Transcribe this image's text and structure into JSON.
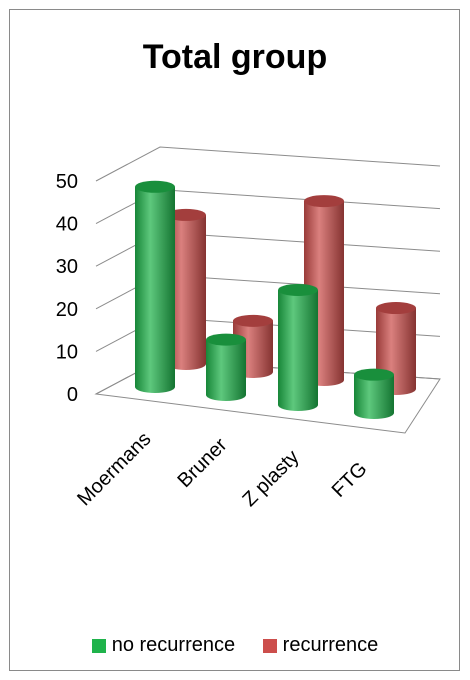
{
  "chart_data": {
    "type": "bar",
    "title": "Total group",
    "categories": [
      "Moermans",
      "Bruner",
      "Z plasty",
      "FTG"
    ],
    "series": [
      {
        "name": "no recurrence",
        "values": [
          47,
          13,
          27,
          9
        ],
        "color": "#1fb34b"
      },
      {
        "name": "recurrence",
        "values": [
          35,
          12,
          42,
          19
        ],
        "color": "#cc4e4c"
      }
    ],
    "ylim": [
      0,
      50
    ],
    "yticks": [
      0,
      10,
      20,
      30,
      40,
      50
    ],
    "grid": true,
    "legend_position": "bottom"
  }
}
